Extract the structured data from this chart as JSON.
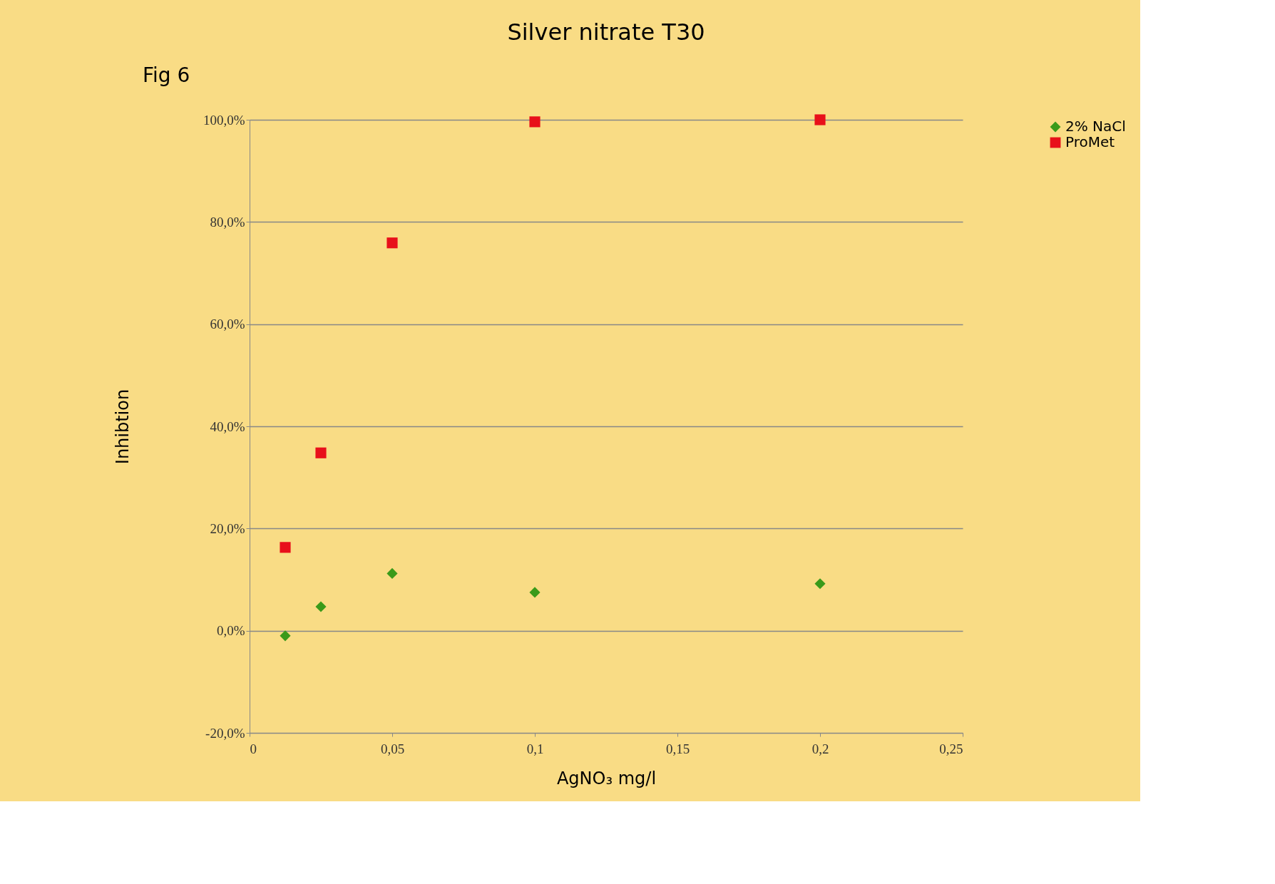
{
  "chart_data": {
    "type": "scatter",
    "title": "Silver nitrate    T30",
    "xlabel": "AgNO₃ mg/l",
    "ylabel": "Inhibtion",
    "annotations": [
      "Fig 6"
    ],
    "x": [
      0.0125,
      0.025,
      0.05,
      0.1,
      0.2
    ],
    "series": [
      {
        "name": "2% NaCl",
        "color": "#3a9a1a",
        "marker": "diamond",
        "values": [
          -1.0,
          4.7,
          11.2,
          7.5,
          9.2
        ]
      },
      {
        "name": "ProMet",
        "color": "#e8101a",
        "marker": "square",
        "values": [
          16.3,
          34.8,
          75.9,
          99.6,
          100.0
        ]
      }
    ],
    "xlim": [
      0,
      0.25
    ],
    "xticks": [
      0,
      {
        "value": 0.05,
        "label": "0,05"
      },
      {
        "value": 0.1,
        "label": "0,1"
      },
      {
        "value": 0.15,
        "label": "0,15"
      },
      {
        "value": 0.2,
        "label": "0,2"
      },
      {
        "value": 0.25,
        "label": "0,25"
      }
    ],
    "ylim": [
      -20,
      100
    ],
    "yticks": [
      {
        "value": -20,
        "label": "-20,0%"
      },
      {
        "value": 0,
        "label": "0,0%"
      },
      {
        "value": 20,
        "label": "20,0%"
      },
      {
        "value": 40,
        "label": "40,0%"
      },
      {
        "value": 60,
        "label": "60,0%"
      },
      {
        "value": 80,
        "label": "80,0%"
      },
      {
        "value": 100,
        "label": "100,0%"
      }
    ],
    "grid": "y",
    "legend": "right"
  }
}
